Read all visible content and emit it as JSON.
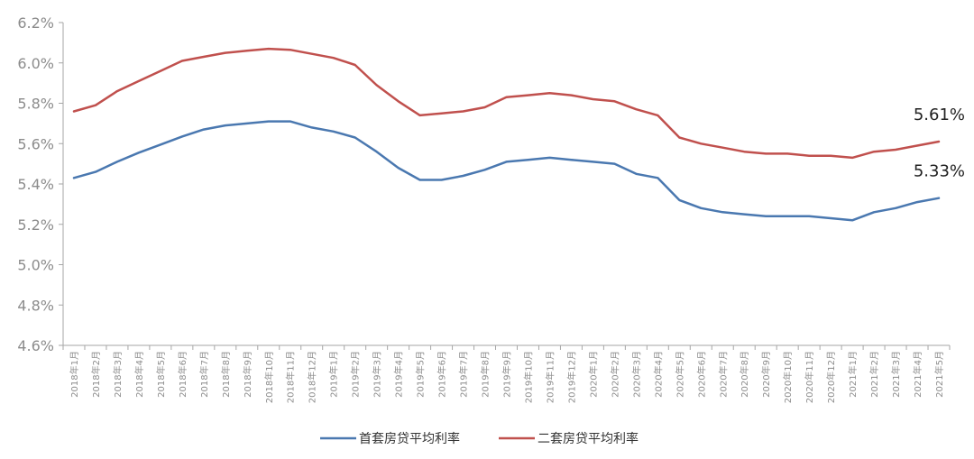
{
  "chart_data": {
    "type": "line",
    "title": "",
    "xlabel": "",
    "ylabel": "",
    "ylim": [
      4.6,
      6.2
    ],
    "yticks": [
      "4.6%",
      "4.8%",
      "5.0%",
      "5.2%",
      "5.4%",
      "5.6%",
      "5.8%",
      "6.0%",
      "6.2%"
    ],
    "grid": false,
    "legend_position": "bottom",
    "categories": [
      "2018年1月",
      "2018年2月",
      "2018年3月",
      "2018年4月",
      "2018年5月",
      "2018年6月",
      "2018年7月",
      "2018年8月",
      "2018年9月",
      "2018年10月",
      "2018年11月",
      "2018年12月",
      "2019年1月",
      "2019年2月",
      "2019年3月",
      "2019年4月",
      "2019年5月",
      "2019年6月",
      "2019年7月",
      "2019年8月",
      "2019年9月",
      "2019年10月",
      "2019年11月",
      "2019年12月",
      "2020年1月",
      "2020年2月",
      "2020年3月",
      "2020年4月",
      "2020年5月",
      "2020年6月",
      "2020年7月",
      "2020年8月",
      "2020年9月",
      "2020年10月",
      "2020年11月",
      "2020年12月",
      "2021年1月",
      "2021年2月",
      "2021年3月",
      "2021年4月",
      "2021年5月"
    ],
    "series": [
      {
        "name": "首套房贷平均利率",
        "color": "#4a78b0",
        "values": [
          5.43,
          5.46,
          5.51,
          5.555,
          5.595,
          5.635,
          5.67,
          5.69,
          5.7,
          5.71,
          5.71,
          5.68,
          5.66,
          5.63,
          5.56,
          5.48,
          5.42,
          5.42,
          5.44,
          5.47,
          5.51,
          5.52,
          5.53,
          5.52,
          5.51,
          5.5,
          5.45,
          5.43,
          5.32,
          5.28,
          5.26,
          5.25,
          5.24,
          5.24,
          5.24,
          5.23,
          5.22,
          5.26,
          5.28,
          5.31,
          5.33
        ],
        "end_label": "5.33%"
      },
      {
        "name": "二套房贷平均利率",
        "color": "#c0504d",
        "values": [
          5.76,
          5.79,
          5.86,
          5.91,
          5.96,
          6.01,
          6.03,
          6.05,
          6.06,
          6.07,
          6.065,
          6.045,
          6.025,
          5.99,
          5.89,
          5.81,
          5.74,
          5.75,
          5.76,
          5.78,
          5.83,
          5.84,
          5.85,
          5.84,
          5.82,
          5.81,
          5.77,
          5.74,
          5.63,
          5.6,
          5.58,
          5.56,
          5.55,
          5.55,
          5.54,
          5.54,
          5.53,
          5.56,
          5.57,
          5.59,
          5.61
        ],
        "end_label": "5.61%"
      }
    ]
  }
}
